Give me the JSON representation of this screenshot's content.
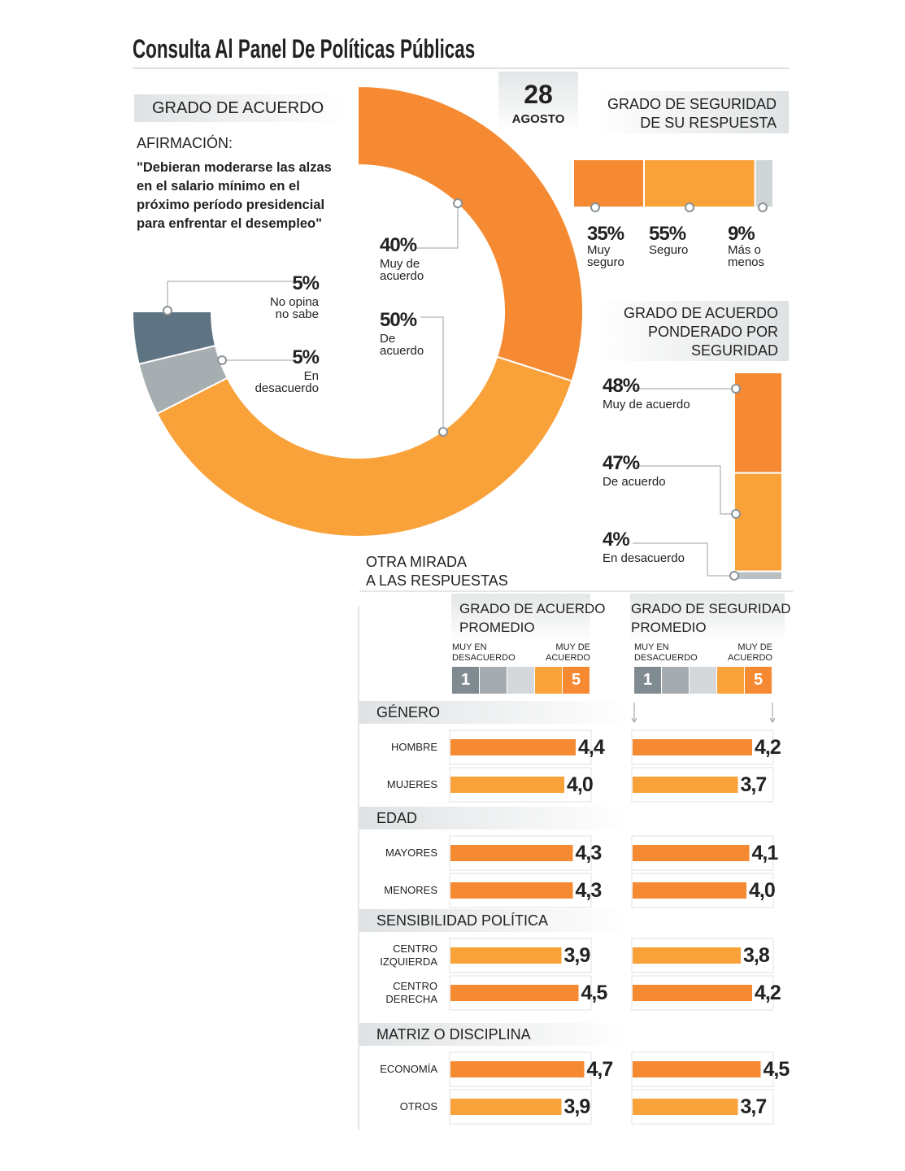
{
  "title": "Consulta Al Panel De Políticas Públicas",
  "date": {
    "day": 28,
    "month": "AGOSTO"
  },
  "chart_data": [
    {
      "type": "donut",
      "title": "GRADO DE ACUERDO",
      "statement_label": "AFIRMACIÓN:",
      "statement": "\"Debieran moderarse las alzas\nen el salario mínimo en el\npróximo período presidencial\npara enfrentar el desempleo\"",
      "categories": [
        "Muy de\nacuerdo",
        "De\nacuerdo",
        "En\ndesacuerdo",
        "No opina\nno sabe"
      ],
      "values": [
        40,
        50,
        5,
        5
      ],
      "value_labels": [
        "40%",
        "50%",
        "5%",
        "5%"
      ],
      "colors": [
        "#f58a32",
        "#f9a23a",
        "#a7aeb2",
        "#5f7482"
      ]
    },
    {
      "type": "stacked-bar-h",
      "title": "GRADO DE SEGURIDAD\nDE SU RESPUESTA",
      "categories": [
        "Muy\nseguro",
        "Seguro",
        "Más o\nmenos"
      ],
      "values": [
        35,
        55,
        9
      ],
      "value_labels": [
        "35%",
        "55%",
        "9%"
      ],
      "colors": [
        "#f58a32",
        "#f9a23a",
        "#cfd4d7"
      ]
    },
    {
      "type": "stacked-bar-v",
      "title": "GRADO DE ACUERDO\nPONDERADO POR\nSEGURIDAD",
      "categories": [
        "Muy de acuerdo",
        "De acuerdo",
        "En desacuerdo"
      ],
      "values": [
        48,
        47,
        4
      ],
      "value_labels": [
        "48%",
        "47%",
        "4%"
      ],
      "colors": [
        "#f58a32",
        "#f9a23a",
        "#b9bfc2"
      ]
    },
    {
      "type": "grouped-bar-h",
      "title": "OTRA MIRADA\nA LAS RESPUESTAS",
      "scale": {
        "min_label": "MUY EN\nDESACUERDO",
        "max_label": "MUY DE\nACUERDO",
        "min": 1,
        "max": 5,
        "colors": [
          "#7f8b91",
          "#a4acb0",
          "#d4d8da",
          "#f9a23a",
          "#f58a32"
        ]
      },
      "groups": [
        {
          "name": "GÉNERO",
          "categories": [
            "HOMBRE",
            "MUJERES"
          ]
        },
        {
          "name": "EDAD",
          "categories": [
            "MAYORES",
            "MENORES"
          ]
        },
        {
          "name": "SENSIBILIDAD POLÍTICA",
          "categories": [
            "CENTRO\nIZQUIERDA",
            "CENTRO\nDERECHA"
          ]
        },
        {
          "name": "MATRIZ O DISCIPLINA",
          "categories": [
            "ECONOMÍA",
            "OTROS"
          ]
        }
      ],
      "series": [
        {
          "name": "GRADO DE ACUERDO\nPROMEDIO",
          "xlim": [
            0,
            5
          ],
          "values": [
            4.4,
            4.0,
            4.3,
            4.3,
            3.9,
            4.5,
            4.7,
            3.9
          ],
          "value_labels": [
            "4,4",
            "4,0",
            "4,3",
            "4,3",
            "3,9",
            "4,5",
            "4,7",
            "3,9"
          ],
          "colors": [
            "#f58a32",
            "#f9a23a",
            "#f58a32",
            "#f58a32",
            "#f9a23a",
            "#f58a32",
            "#f58a32",
            "#f9a23a"
          ]
        },
        {
          "name": "GRADO DE SEGURIDAD\nPROMEDIO",
          "xlim": [
            0,
            5
          ],
          "values": [
            4.2,
            3.7,
            4.1,
            4.0,
            3.8,
            4.2,
            4.5,
            3.7
          ],
          "value_labels": [
            "4,2",
            "3,7",
            "4,1",
            "4,0",
            "3,8",
            "4,2",
            "4,5",
            "3,7"
          ],
          "colors": [
            "#f58a32",
            "#f9a23a",
            "#f58a32",
            "#f58a32",
            "#f9a23a",
            "#f58a32",
            "#f58a32",
            "#f9a23a"
          ]
        }
      ]
    }
  ]
}
